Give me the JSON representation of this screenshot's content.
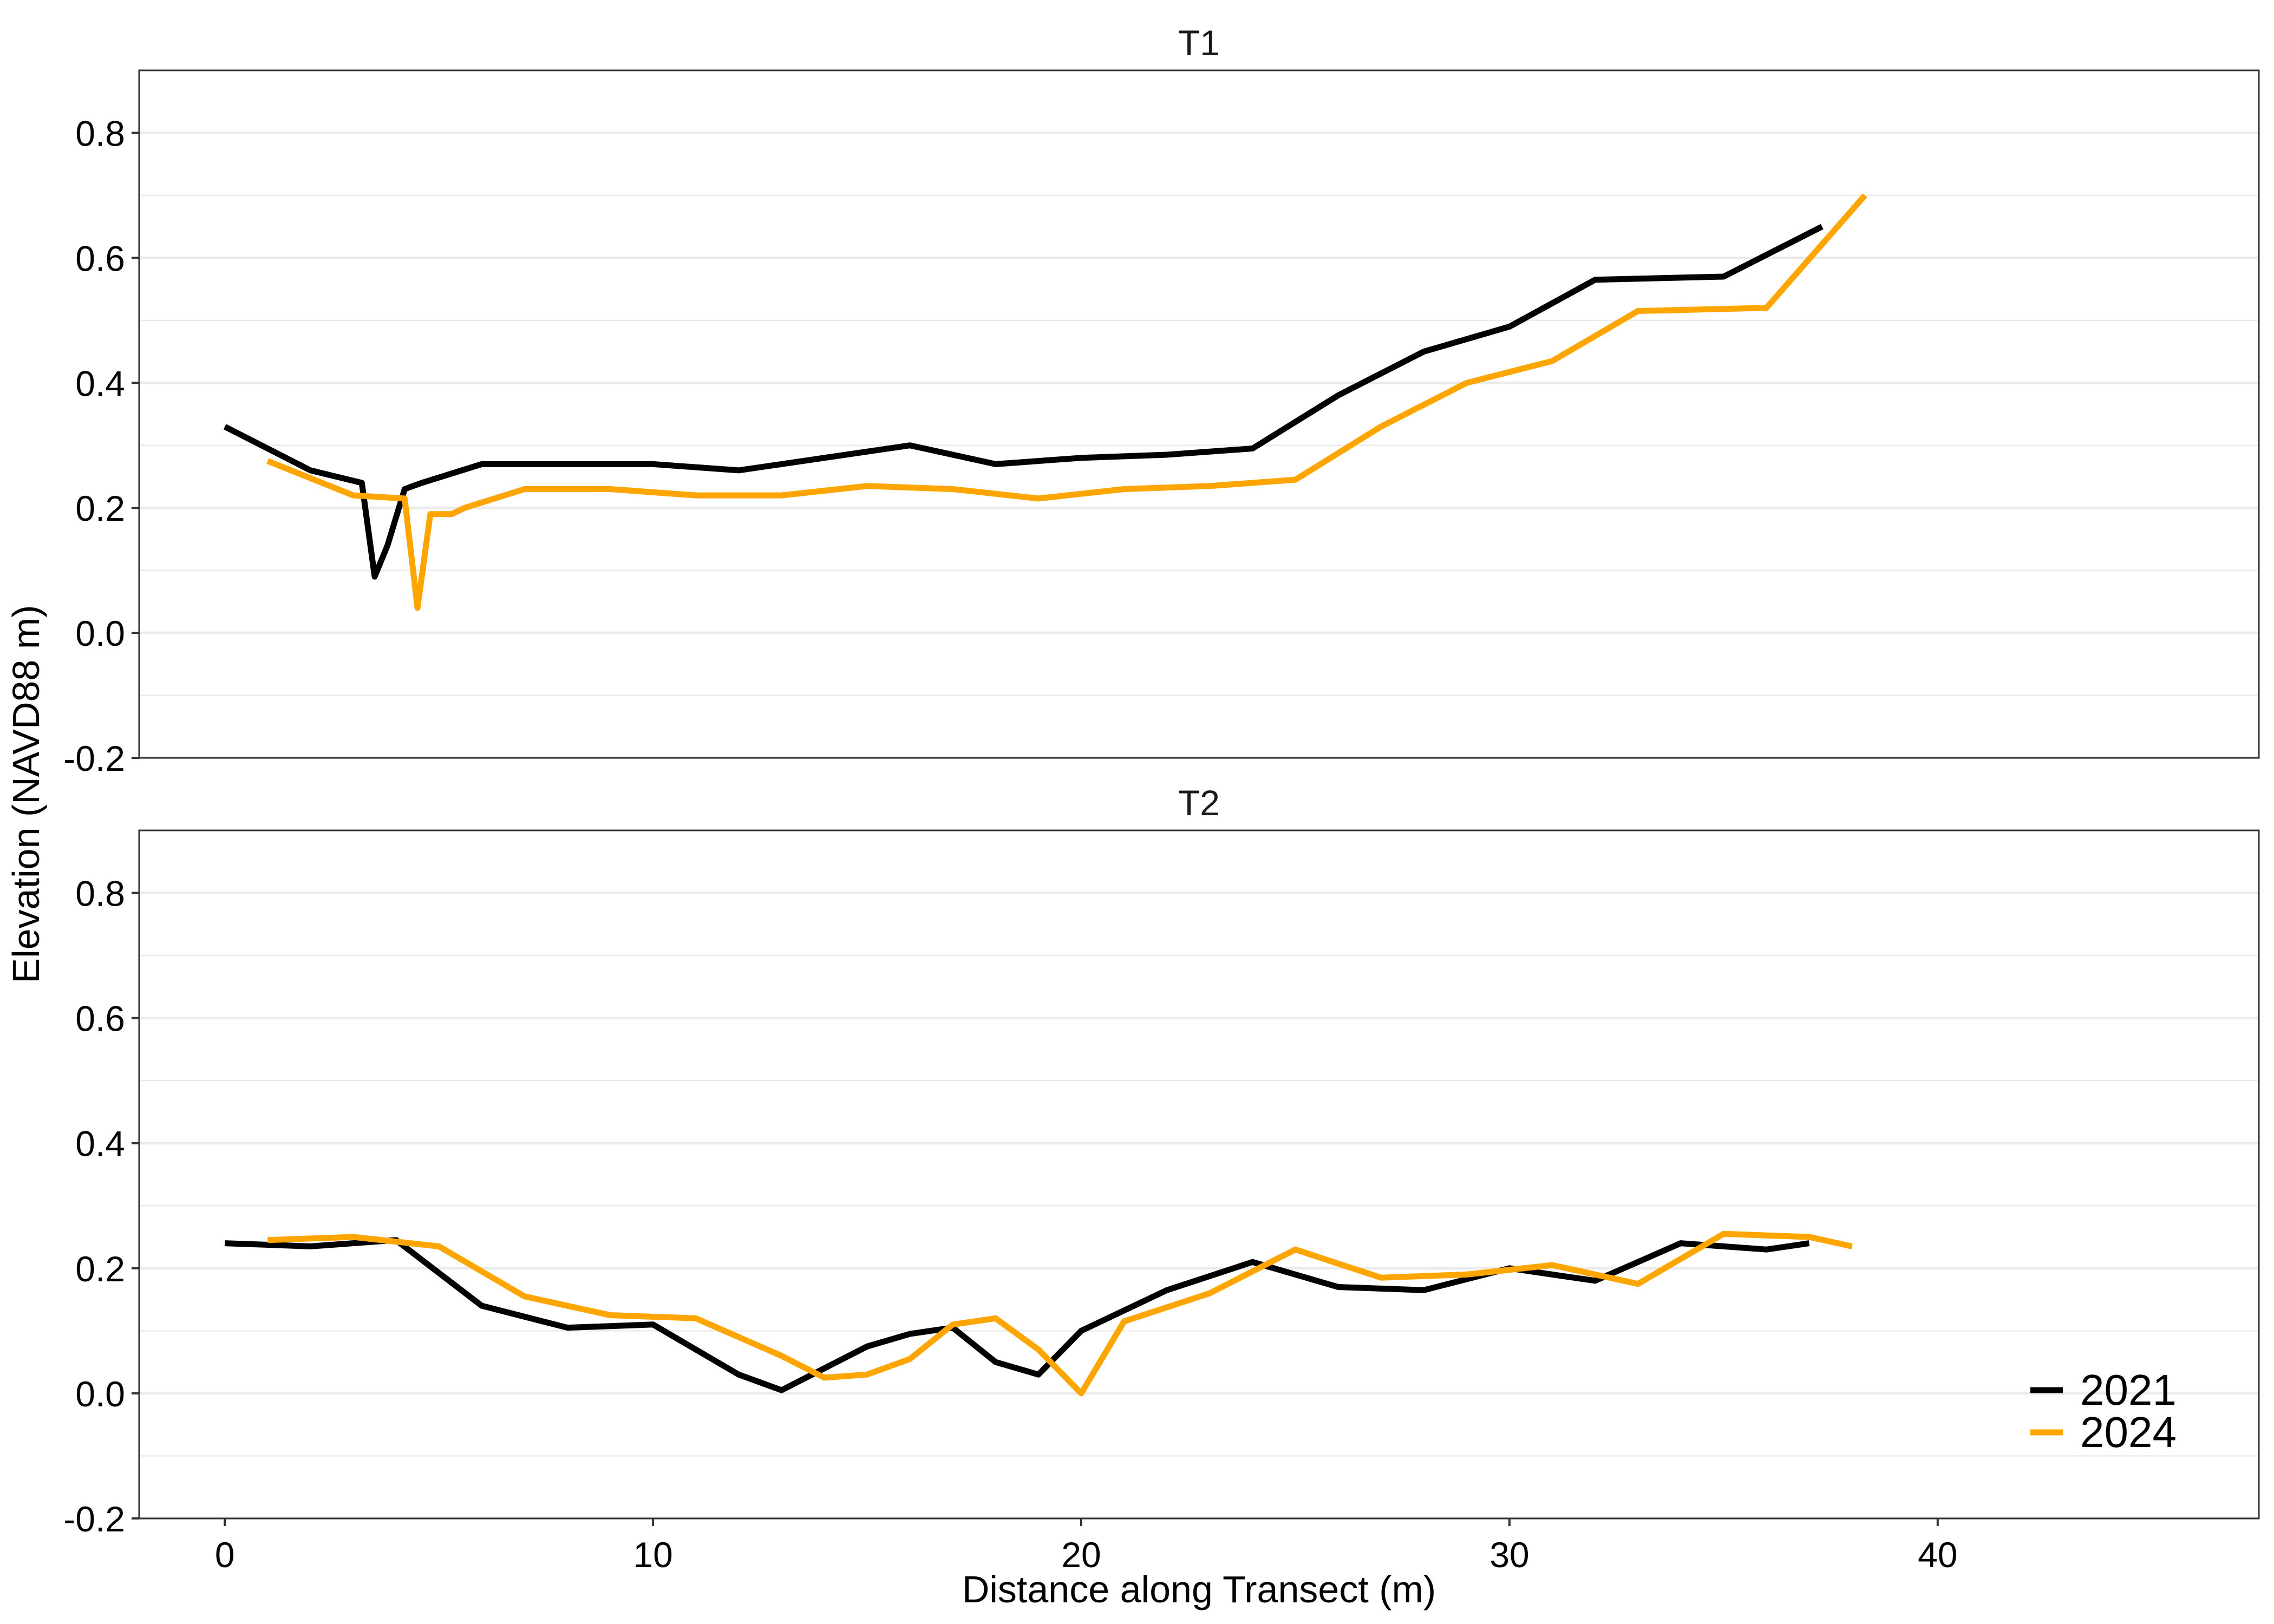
{
  "figure": {
    "ylabel": "Elevation (NAVD88 m)",
    "xlabel": "Distance along Transect (m)"
  },
  "colors": {
    "2021": "#000000",
    "2024": "#FFA500",
    "grid": "#EBEBEB",
    "panel_border": "#333333"
  },
  "legend": {
    "position": "bottom-right",
    "entries": [
      {
        "label": "2021",
        "color": "#000000"
      },
      {
        "label": "2024",
        "color": "#FFA500"
      }
    ]
  },
  "chart_data": [
    {
      "type": "line",
      "title": "T1",
      "xlim": [
        -2,
        47.5
      ],
      "ylim": [
        -0.2,
        0.9
      ],
      "x_ticks": [
        0,
        10,
        20,
        30,
        40
      ],
      "x_tick_labels": [
        "0",
        "10",
        "20",
        "30",
        "40"
      ],
      "y_ticks": [
        -0.2,
        0.0,
        0.2,
        0.4,
        0.6,
        0.8
      ],
      "y_tick_labels": [
        "-0.2",
        "0.0",
        "0.2",
        "0.4",
        "0.6",
        "0.8"
      ],
      "grid": true,
      "show_x_axis": false,
      "series": [
        {
          "name": "2021",
          "color": "#000000",
          "points": [
            [
              0,
              0.33
            ],
            [
              2,
              0.26
            ],
            [
              3.2,
              0.24
            ],
            [
              3.5,
              0.09
            ],
            [
              3.8,
              0.14
            ],
            [
              4.2,
              0.23
            ],
            [
              4.6,
              0.24
            ],
            [
              6,
              0.27
            ],
            [
              10,
              0.27
            ],
            [
              12,
              0.26
            ],
            [
              16,
              0.3
            ],
            [
              18,
              0.27
            ],
            [
              20,
              0.28
            ],
            [
              22,
              0.285
            ],
            [
              24,
              0.295
            ],
            [
              26,
              0.38
            ],
            [
              28,
              0.45
            ],
            [
              30,
              0.49
            ],
            [
              32,
              0.565
            ],
            [
              35,
              0.57
            ],
            [
              37.3,
              0.65
            ]
          ]
        },
        {
          "name": "2024",
          "color": "#FFA500",
          "points": [
            [
              1,
              0.275
            ],
            [
              3,
              0.22
            ],
            [
              4.2,
              0.215
            ],
            [
              4.5,
              0.04
            ],
            [
              4.8,
              0.19
            ],
            [
              5.3,
              0.19
            ],
            [
              5.6,
              0.2
            ],
            [
              7,
              0.23
            ],
            [
              9,
              0.23
            ],
            [
              11,
              0.22
            ],
            [
              13,
              0.22
            ],
            [
              15,
              0.235
            ],
            [
              17,
              0.23
            ],
            [
              19,
              0.215
            ],
            [
              21,
              0.23
            ],
            [
              23,
              0.235
            ],
            [
              25,
              0.245
            ],
            [
              27,
              0.33
            ],
            [
              29,
              0.4
            ],
            [
              31,
              0.435
            ],
            [
              33,
              0.515
            ],
            [
              36,
              0.52
            ],
            [
              38.3,
              0.7
            ]
          ]
        }
      ]
    },
    {
      "type": "line",
      "title": "T2",
      "xlim": [
        -2,
        47.5
      ],
      "ylim": [
        -0.2,
        0.9
      ],
      "x_ticks": [
        0,
        10,
        20,
        30,
        40
      ],
      "x_tick_labels": [
        "0",
        "10",
        "20",
        "30",
        "40"
      ],
      "y_ticks": [
        -0.2,
        0.0,
        0.2,
        0.4,
        0.6,
        0.8
      ],
      "y_tick_labels": [
        "-0.2",
        "0.0",
        "0.2",
        "0.4",
        "0.6",
        "0.8"
      ],
      "grid": true,
      "show_x_axis": true,
      "series": [
        {
          "name": "2021",
          "color": "#000000",
          "points": [
            [
              0,
              0.24
            ],
            [
              2,
              0.235
            ],
            [
              4,
              0.245
            ],
            [
              6,
              0.14
            ],
            [
              8,
              0.105
            ],
            [
              10,
              0.11
            ],
            [
              12,
              0.03
            ],
            [
              13,
              0.005
            ],
            [
              15,
              0.075
            ],
            [
              16,
              0.095
            ],
            [
              17,
              0.105
            ],
            [
              18,
              0.05
            ],
            [
              19,
              0.03
            ],
            [
              20,
              0.1
            ],
            [
              22,
              0.165
            ],
            [
              24,
              0.21
            ],
            [
              26,
              0.17
            ],
            [
              28,
              0.165
            ],
            [
              30,
              0.2
            ],
            [
              32,
              0.18
            ],
            [
              34,
              0.24
            ],
            [
              36,
              0.23
            ],
            [
              37,
              0.24
            ]
          ]
        },
        {
          "name": "2024",
          "color": "#FFA500",
          "points": [
            [
              1,
              0.245
            ],
            [
              3,
              0.25
            ],
            [
              5,
              0.235
            ],
            [
              7,
              0.155
            ],
            [
              9,
              0.125
            ],
            [
              11,
              0.12
            ],
            [
              13,
              0.06
            ],
            [
              14,
              0.025
            ],
            [
              15,
              0.03
            ],
            [
              16,
              0.055
            ],
            [
              17,
              0.11
            ],
            [
              18,
              0.12
            ],
            [
              19,
              0.07
            ],
            [
              20,
              0.0
            ],
            [
              21,
              0.115
            ],
            [
              23,
              0.16
            ],
            [
              25,
              0.23
            ],
            [
              27,
              0.185
            ],
            [
              29,
              0.19
            ],
            [
              31,
              0.205
            ],
            [
              33,
              0.175
            ],
            [
              35,
              0.255
            ],
            [
              37,
              0.25
            ],
            [
              38,
              0.235
            ]
          ]
        }
      ]
    }
  ]
}
